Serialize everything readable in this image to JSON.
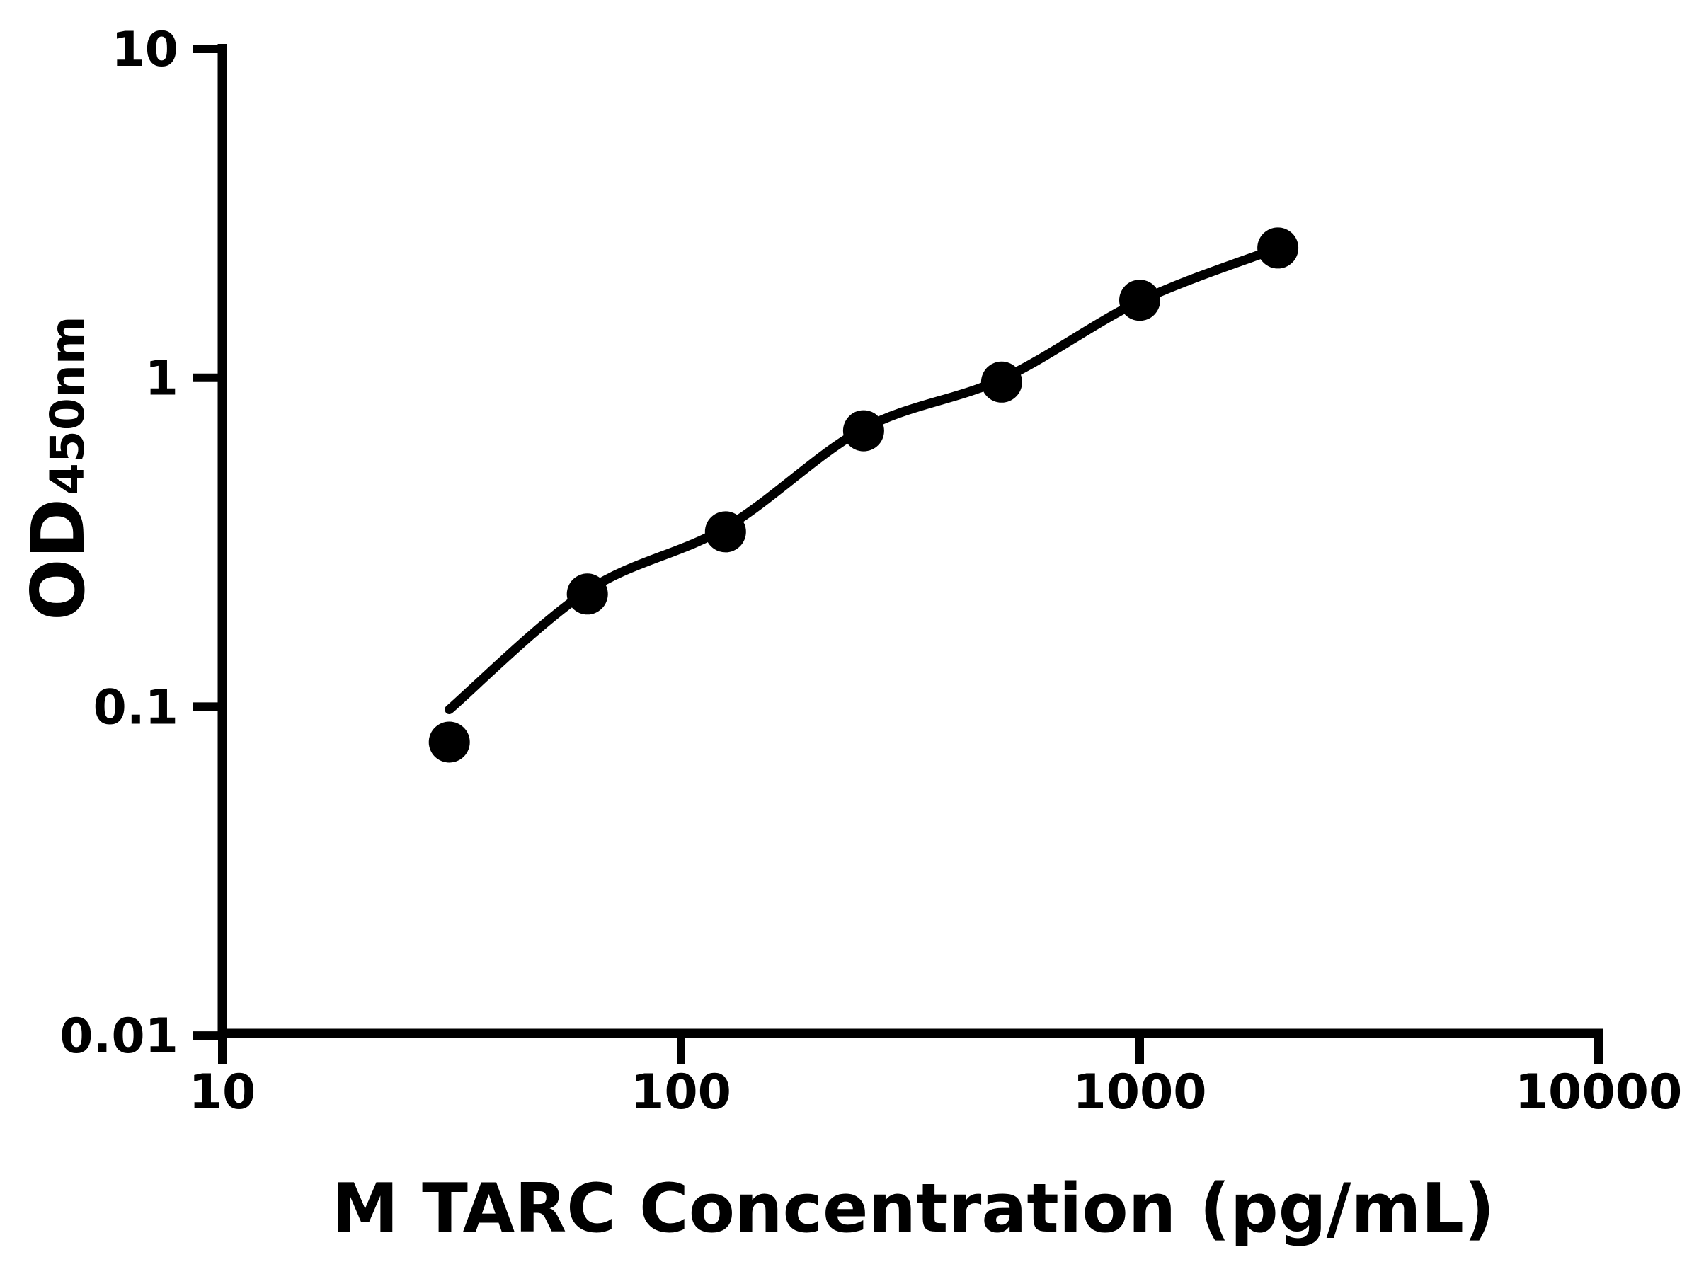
{
  "figure": {
    "background": "#ffffff",
    "ink_color": "#000000",
    "xlabel": "M TARC Concentration (pg/mL)",
    "ylabel_main": "OD",
    "ylabel_sub": "450nm"
  },
  "chart_data": {
    "type": "scatter",
    "title": "",
    "xlabel": "M TARC Concentration (pg/mL)",
    "ylabel": "OD450nm",
    "x_scale": "log",
    "y_scale": "log",
    "xlim": [
      10,
      10000
    ],
    "ylim": [
      0.01,
      10
    ],
    "grid": false,
    "legend": null,
    "x_ticks": [
      {
        "value": 10,
        "label": "10"
      },
      {
        "value": 100,
        "label": "100"
      },
      {
        "value": 1000,
        "label": "1000"
      },
      {
        "value": 10000,
        "label": "10000"
      }
    ],
    "y_ticks": [
      {
        "value": 10,
        "label": "10"
      },
      {
        "value": 1,
        "label": "1"
      },
      {
        "value": 0.1,
        "label": "0.1"
      },
      {
        "value": 0.01,
        "label": "0.01"
      }
    ],
    "series": [
      {
        "marker": "circle",
        "color": "#000000",
        "points": [
          {
            "x": 31.25,
            "y": 0.078
          },
          {
            "x": 62.5,
            "y": 0.22
          },
          {
            "x": 125,
            "y": 0.34
          },
          {
            "x": 250,
            "y": 0.69
          },
          {
            "x": 500,
            "y": 0.97
          },
          {
            "x": 1000,
            "y": 1.72
          },
          {
            "x": 2000,
            "y": 2.48
          }
        ]
      }
    ],
    "fit_curve": {
      "color": "#000000",
      "points": [
        {
          "x": 31.25,
          "y": 0.098
        },
        {
          "x": 62.5,
          "y": 0.225
        },
        {
          "x": 125,
          "y": 0.35
        },
        {
          "x": 250,
          "y": 0.7
        },
        {
          "x": 500,
          "y": 0.99
        },
        {
          "x": 1000,
          "y": 1.71
        },
        {
          "x": 2000,
          "y": 2.48
        }
      ]
    }
  }
}
